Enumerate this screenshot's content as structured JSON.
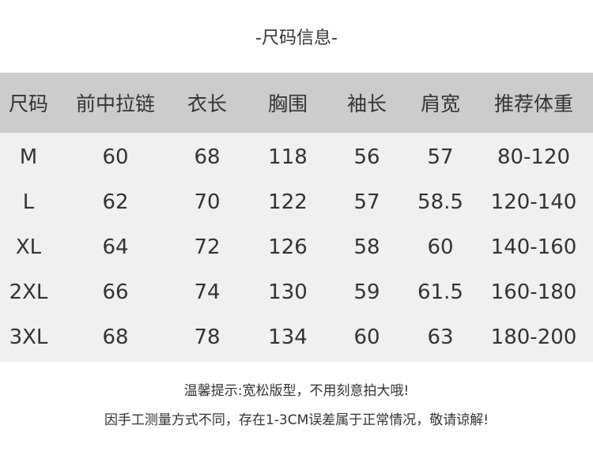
{
  "title": "-尺码信息-",
  "table": {
    "headers": [
      "尺码",
      "前中拉链",
      "衣长",
      "胸围",
      "袖长",
      "肩宽",
      "推荐体重"
    ],
    "rows": [
      [
        "M",
        "60",
        "68",
        "118",
        "56",
        "57",
        "80-120"
      ],
      [
        "L",
        "62",
        "70",
        "122",
        "57",
        "58.5",
        "120-140"
      ],
      [
        "XL",
        "64",
        "72",
        "126",
        "58",
        "60",
        "140-160"
      ],
      [
        "2XL",
        "66",
        "74",
        "130",
        "59",
        "61.5",
        "160-180"
      ],
      [
        "3XL",
        "68",
        "78",
        "134",
        "60",
        "63",
        "180-200"
      ]
    ]
  },
  "notes": [
    "温馨提示:宽松版型，不用刻意拍大哦!",
    "因手工测量方式不同，存在1-3CM误差属于正常情况，敬请谅解!"
  ],
  "colors": {
    "header_bg": "#cccccc",
    "body_bg": "#f0f0f0",
    "text": "#333333"
  }
}
